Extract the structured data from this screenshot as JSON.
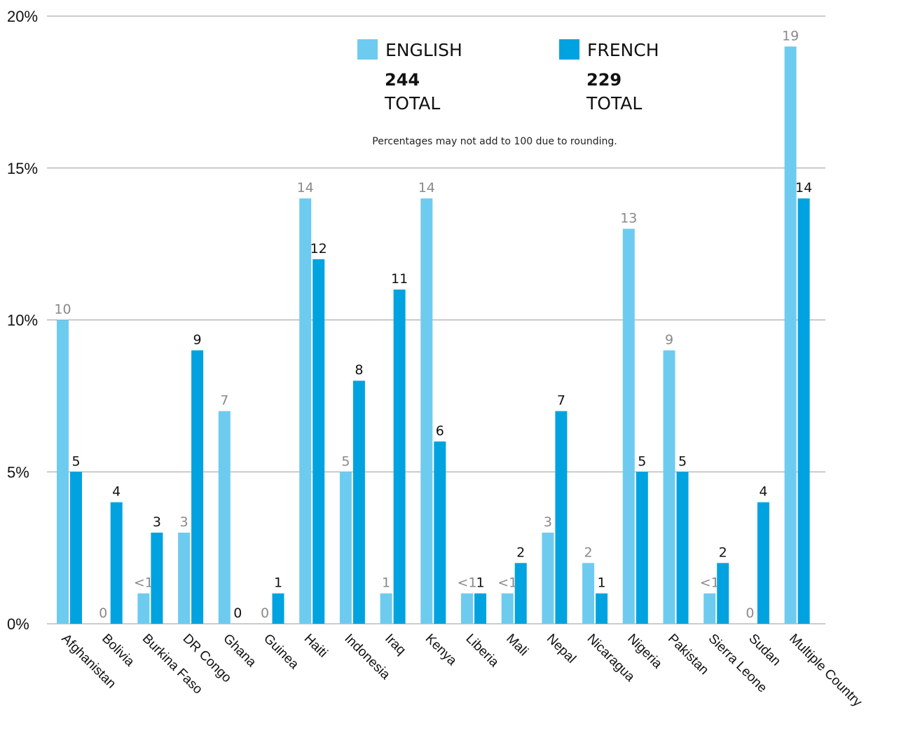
{
  "chart_data": {
    "type": "bar",
    "note": "Percentages may not add to 100 due to rounding.",
    "y_ticks": [
      "0%",
      "5%",
      "10%",
      "15%",
      "20%"
    ],
    "ylim": [
      0,
      20
    ],
    "grid": true,
    "legend_position": "top-center",
    "categories": [
      "Afghanistan",
      "Bolivia",
      "Burkina Faso",
      "DR Congo",
      "Ghana",
      "Guinea",
      "Haiti",
      "Indonesia",
      "Iraq",
      "Kenya",
      "Liberia",
      "Mali",
      "Nepal",
      "Nicaragua",
      "Nigeria",
      "Pakistan",
      "Sierra Leone",
      "Sudan",
      "Multiple Country"
    ],
    "series": [
      {
        "name": "ENGLISH",
        "total": "244",
        "total_label": "TOTAL",
        "color": "#6ecbf0",
        "values": [
          10,
          0,
          1,
          3,
          7,
          0,
          14,
          5,
          1,
          14,
          1,
          1,
          3,
          2,
          13,
          9,
          1,
          0,
          19
        ],
        "labels": [
          "10",
          "0",
          "<1",
          "3",
          "7",
          "0",
          "14",
          "5",
          "1",
          "14",
          "<1",
          "<1",
          "3",
          "2",
          "13",
          "9",
          "<1",
          "0",
          "19"
        ]
      },
      {
        "name": "FRENCH",
        "total": "229",
        "total_label": "TOTAL",
        "color": "#00a3e0",
        "values": [
          5,
          4,
          3,
          9,
          0,
          1,
          12,
          8,
          11,
          6,
          1,
          2,
          7,
          1,
          5,
          5,
          2,
          4,
          14
        ],
        "labels": [
          "5",
          "4",
          "3",
          "9",
          "0",
          "1",
          "12",
          "8",
          "11",
          "6",
          "1",
          "2",
          "7",
          "1",
          "5",
          "5",
          "2",
          "4",
          "14"
        ]
      }
    ]
  }
}
